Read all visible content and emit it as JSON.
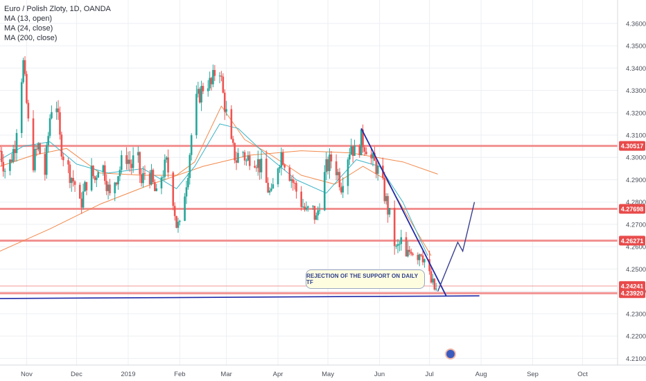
{
  "legend": {
    "title": "Euro / Polish Zloty, 1D, OANDA",
    "ma1": "MA (13, open)",
    "ma2": "MA (24, close)",
    "ma3": "MA (200, close)"
  },
  "annotation": "REJECTION OF THE SUPPORT ON DAILY TF",
  "colors": {
    "up": "#26a69a",
    "down": "#ef5350",
    "level_line": "#f28b8b",
    "level_badge": "#e84b4b",
    "trendline": "#1f2aa8",
    "ma_open": "#3ab3c6",
    "ma_close24": "#f2894b",
    "ma_close200": "#f2894b",
    "axis_text": "#4a4e59",
    "grid": "#eceff4"
  },
  "chart_data": {
    "type": "candlestick",
    "symbol": "EUR/PLN",
    "timeframe": "1D",
    "source": "OANDA",
    "x_range": [
      "2018-10-16",
      "2019-10-22"
    ],
    "y_range": [
      4.207,
      4.3705
    ],
    "y_ticks": [
      "4.36000",
      "4.35000",
      "4.34000",
      "4.33000",
      "4.32000",
      "4.31000",
      "4.30000",
      "4.29000",
      "4.28000",
      "4.27000",
      "4.26000",
      "4.25000",
      "4.24000",
      "4.23000",
      "4.22000",
      "4.21000"
    ],
    "x_ticks": [
      {
        "label": "Nov",
        "date": "2018-11-01"
      },
      {
        "label": "Dec",
        "date": "2018-12-01"
      },
      {
        "label": "2019",
        "date": "2019-01-01"
      },
      {
        "label": "Feb",
        "date": "2019-02-01"
      },
      {
        "label": "Mar",
        "date": "2019-03-01"
      },
      {
        "label": "Apr",
        "date": "2019-04-01"
      },
      {
        "label": "May",
        "date": "2019-05-01"
      },
      {
        "label": "Jun",
        "date": "2019-06-01"
      },
      {
        "label": "Jul",
        "date": "2019-07-01"
      },
      {
        "label": "Aug",
        "date": "2019-08-01"
      },
      {
        "label": "Sep",
        "date": "2019-09-01"
      },
      {
        "label": "Oct",
        "date": "2019-10-01"
      }
    ],
    "horizontal_levels": [
      {
        "value": 4.30517,
        "label": "4.30517"
      },
      {
        "value": 4.27698,
        "label": "4.27698"
      },
      {
        "value": 4.26271,
        "label": "4.26271"
      },
      {
        "value": 4.24241,
        "label": "4.24241"
      },
      {
        "value": 4.2392,
        "label": "4.23920"
      }
    ],
    "price_path": [
      [
        "2018-10-16",
        4.303
      ],
      [
        "2018-10-20",
        4.292
      ],
      [
        "2018-10-25",
        4.306
      ],
      [
        "2018-10-28",
        4.331
      ],
      [
        "2018-10-30",
        4.342
      ],
      [
        "2018-11-02",
        4.315
      ],
      [
        "2018-11-05",
        4.298
      ],
      [
        "2018-11-08",
        4.305
      ],
      [
        "2018-11-12",
        4.293
      ],
      [
        "2018-11-15",
        4.318
      ],
      [
        "2018-11-18",
        4.332
      ],
      [
        "2018-11-21",
        4.308
      ],
      [
        "2018-11-24",
        4.298
      ],
      [
        "2018-11-27",
        4.293
      ],
      [
        "2018-11-30",
        4.288
      ],
      [
        "2018-12-03",
        4.278
      ],
      [
        "2018-12-06",
        4.286
      ],
      [
        "2018-12-09",
        4.295
      ],
      [
        "2018-12-12",
        4.29
      ],
      [
        "2018-12-15",
        4.3
      ],
      [
        "2018-12-18",
        4.293
      ],
      [
        "2018-12-21",
        4.282
      ],
      [
        "2018-12-24",
        4.29
      ],
      [
        "2018-12-27",
        4.295
      ],
      [
        "2018-12-30",
        4.302
      ],
      [
        "2019-01-03",
        4.296
      ],
      [
        "2019-01-06",
        4.303
      ],
      [
        "2019-01-09",
        4.288
      ],
      [
        "2019-01-12",
        4.296
      ],
      [
        "2019-01-15",
        4.29
      ],
      [
        "2019-01-18",
        4.282
      ],
      [
        "2019-01-21",
        4.292
      ],
      [
        "2019-01-24",
        4.297
      ],
      [
        "2019-01-27",
        4.288
      ],
      [
        "2019-01-30",
        4.27
      ],
      [
        "2019-02-01",
        4.268
      ],
      [
        "2019-02-04",
        4.285
      ],
      [
        "2019-02-06",
        4.295
      ],
      [
        "2019-02-08",
        4.31
      ],
      [
        "2019-02-11",
        4.325
      ],
      [
        "2019-02-14",
        4.33
      ],
      [
        "2019-02-17",
        4.335
      ],
      [
        "2019-02-20",
        4.332
      ],
      [
        "2019-02-22",
        4.338
      ],
      [
        "2019-02-25",
        4.34
      ],
      [
        "2019-02-27",
        4.328
      ],
      [
        "2019-03-02",
        4.315
      ],
      [
        "2019-03-04",
        4.305
      ],
      [
        "2019-03-07",
        4.299
      ],
      [
        "2019-03-10",
        4.305
      ],
      [
        "2019-03-13",
        4.298
      ],
      [
        "2019-03-16",
        4.302
      ],
      [
        "2019-03-19",
        4.299
      ],
      [
        "2019-03-22",
        4.295
      ],
      [
        "2019-03-25",
        4.288
      ],
      [
        "2019-03-28",
        4.282
      ],
      [
        "2019-03-31",
        4.295
      ],
      [
        "2019-04-03",
        4.302
      ],
      [
        "2019-04-06",
        4.297
      ],
      [
        "2019-04-09",
        4.291
      ],
      [
        "2019-04-12",
        4.285
      ],
      [
        "2019-04-15",
        4.28
      ],
      [
        "2019-04-18",
        4.275
      ],
      [
        "2019-04-21",
        4.278
      ],
      [
        "2019-04-24",
        4.272
      ],
      [
        "2019-04-27",
        4.285
      ],
      [
        "2019-04-30",
        4.295
      ],
      [
        "2019-05-03",
        4.299
      ],
      [
        "2019-05-06",
        4.295
      ],
      [
        "2019-05-09",
        4.288
      ],
      [
        "2019-05-12",
        4.299
      ],
      [
        "2019-05-15",
        4.306
      ],
      [
        "2019-05-18",
        4.3
      ],
      [
        "2019-05-21",
        4.308
      ],
      [
        "2019-05-24",
        4.305
      ],
      [
        "2019-05-27",
        4.299
      ],
      [
        "2019-05-30",
        4.296
      ],
      [
        "2019-06-02",
        4.29
      ],
      [
        "2019-06-05",
        4.28
      ],
      [
        "2019-06-08",
        4.27
      ],
      [
        "2019-06-11",
        4.258
      ],
      [
        "2019-06-14",
        4.262
      ],
      [
        "2019-06-17",
        4.254
      ],
      [
        "2019-06-20",
        4.26
      ],
      [
        "2019-06-23",
        4.256
      ],
      [
        "2019-06-26",
        4.259
      ],
      [
        "2019-06-29",
        4.252
      ],
      [
        "2019-07-01",
        4.246
      ],
      [
        "2019-07-03",
        4.242
      ],
      [
        "2019-07-05",
        4.24
      ],
      [
        "2019-07-07",
        4.244
      ]
    ],
    "ma_13_open": [
      [
        "2018-10-16",
        4.299
      ],
      [
        "2018-10-30",
        4.305
      ],
      [
        "2018-11-15",
        4.307
      ],
      [
        "2018-12-01",
        4.297
      ],
      [
        "2018-12-20",
        4.293
      ],
      [
        "2019-01-10",
        4.295
      ],
      [
        "2019-01-30",
        4.286
      ],
      [
        "2019-02-10",
        4.296
      ],
      [
        "2019-02-25",
        4.315
      ],
      [
        "2019-03-08",
        4.313
      ],
      [
        "2019-03-25",
        4.301
      ],
      [
        "2019-04-12",
        4.29
      ],
      [
        "2019-04-30",
        4.284
      ],
      [
        "2019-05-18",
        4.299
      ],
      [
        "2019-06-01",
        4.296
      ],
      [
        "2019-06-15",
        4.28
      ],
      [
        "2019-06-30",
        4.256
      ]
    ],
    "ma_24_close": [
      [
        "2018-10-16",
        4.296
      ],
      [
        "2018-11-05",
        4.301
      ],
      [
        "2018-11-25",
        4.304
      ],
      [
        "2018-12-15",
        4.293
      ],
      [
        "2019-01-10",
        4.292
      ],
      [
        "2019-01-30",
        4.292
      ],
      [
        "2019-02-10",
        4.298
      ],
      [
        "2019-02-26",
        4.323
      ],
      [
        "2019-03-12",
        4.308
      ],
      [
        "2019-03-28",
        4.301
      ],
      [
        "2019-04-15",
        4.292
      ],
      [
        "2019-05-05",
        4.288
      ],
      [
        "2019-05-22",
        4.296
      ],
      [
        "2019-06-05",
        4.29
      ],
      [
        "2019-06-20",
        4.271
      ],
      [
        "2019-07-02",
        4.256
      ]
    ],
    "ma_200_close": [
      [
        "2018-10-16",
        4.258
      ],
      [
        "2018-11-15",
        4.268
      ],
      [
        "2018-12-15",
        4.279
      ],
      [
        "2019-01-15",
        4.288
      ],
      [
        "2019-02-15",
        4.296
      ],
      [
        "2019-03-15",
        4.301
      ],
      [
        "2019-04-15",
        4.303
      ],
      [
        "2019-05-15",
        4.302
      ],
      [
        "2019-06-15",
        4.298
      ],
      [
        "2019-07-06",
        4.2925
      ]
    ],
    "trendlines": [
      {
        "from": [
          "2019-05-21",
          4.313
        ],
        "to": [
          "2019-07-11",
          4.238
        ]
      },
      {
        "from": [
          "2018-10-16",
          4.2368
        ],
        "to": [
          "2019-07-31",
          4.238
        ]
      }
    ],
    "projection": [
      [
        "2019-07-06",
        4.24
      ],
      [
        "2019-07-18",
        4.262
      ],
      [
        "2019-07-21",
        4.258
      ],
      [
        "2019-07-28",
        4.28
      ]
    ]
  }
}
